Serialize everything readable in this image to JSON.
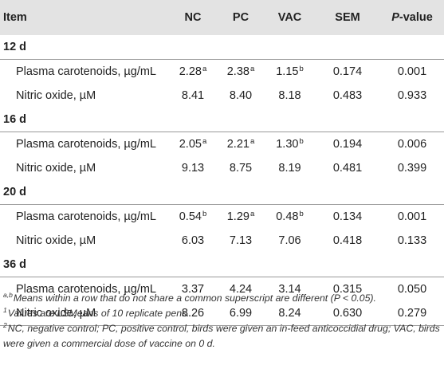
{
  "table": {
    "headers": {
      "item": "Item",
      "nc": "NC",
      "pc": "PC",
      "vac": "VAC",
      "sem": "SEM",
      "p_prefix": "P",
      "p_suffix": "-value"
    },
    "groups": [
      {
        "day": "12 d",
        "rows": [
          {
            "label": "Plasma carotenoids, µg/mL",
            "nc": "2.28",
            "nc_sup": "a",
            "pc": "2.38",
            "pc_sup": "a",
            "vac": "1.15",
            "vac_sup": "b",
            "sem": "0.174",
            "p": "0.001"
          },
          {
            "label": "Nitric oxide, µM",
            "nc": "8.41",
            "nc_sup": "",
            "pc": "8.40",
            "pc_sup": "",
            "vac": "8.18",
            "vac_sup": "",
            "sem": "0.483",
            "p": "0.933"
          }
        ]
      },
      {
        "day": "16 d",
        "rows": [
          {
            "label": "Plasma carotenoids, µg/mL",
            "nc": "2.05",
            "nc_sup": "a",
            "pc": "2.21",
            "pc_sup": "a",
            "vac": "1.30",
            "vac_sup": "b",
            "sem": "0.194",
            "p": "0.006"
          },
          {
            "label": "Nitric oxide, µM",
            "nc": "9.13",
            "nc_sup": "",
            "pc": "8.75",
            "pc_sup": "",
            "vac": "8.19",
            "vac_sup": "",
            "sem": "0.481",
            "p": "0.399"
          }
        ]
      },
      {
        "day": "20 d",
        "rows": [
          {
            "label": "Plasma carotenoids, µg/mL",
            "nc": "0.54",
            "nc_sup": "b",
            "pc": "1.29",
            "pc_sup": "a",
            "vac": "0.48",
            "vac_sup": "b",
            "sem": "0.134",
            "p": "0.001"
          },
          {
            "label": "Nitric oxide, µM",
            "nc": "6.03",
            "nc_sup": "",
            "pc": "7.13",
            "pc_sup": "",
            "vac": "7.06",
            "vac_sup": "",
            "sem": "0.418",
            "p": "0.133"
          }
        ]
      },
      {
        "day": "36 d",
        "rows": [
          {
            "label": "Plasma carotenoids, µg/mL",
            "nc": "3.37",
            "nc_sup": "",
            "pc": "4.24",
            "pc_sup": "",
            "vac": "3.14",
            "vac_sup": "",
            "sem": "0.315",
            "p": "0.050"
          },
          {
            "label": "Nitric oxide, µM",
            "nc": "8.26",
            "nc_sup": "",
            "pc": "6.99",
            "pc_sup": "",
            "vac": "8.24",
            "vac_sup": "",
            "sem": "0.630",
            "p": "0.279"
          }
        ]
      }
    ]
  },
  "footnotes": [
    {
      "mark": "a,b",
      "text": "Means within a row that do not share a common superscript are different (P < 0.05)."
    },
    {
      "mark": "1",
      "text": "Values are LSMeans of 10 replicate pens."
    },
    {
      "mark": "2",
      "text": "NC, negative control; PC, positive control, birds were given an in-feed anticoccidial drug; VAC, birds were given a commercial dose of vaccine on 0 d."
    }
  ]
}
